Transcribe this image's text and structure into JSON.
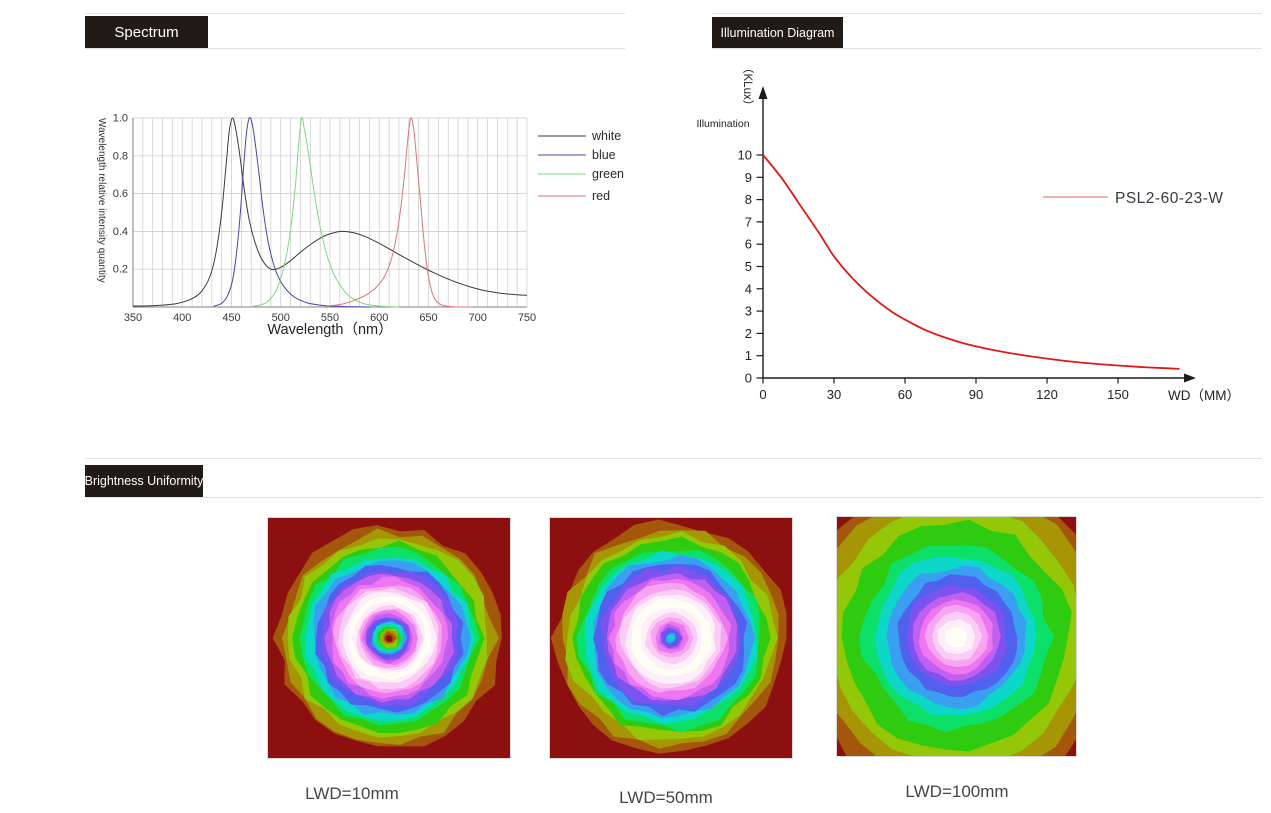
{
  "sections": {
    "spectrum": {
      "title": "Spectrum"
    },
    "illumination": {
      "title": "Illumination Diagram"
    },
    "uniformity": {
      "title": "Brightness Uniformity"
    }
  },
  "theme": {
    "tag_bg": "#201b17",
    "tag_text": "#ffffff",
    "divider": "#e0e0e0",
    "grid": "#c9c9c9",
    "axis_dark": "#808080",
    "illum_curve_red": "#df1a16",
    "illum_legend_line": "#e8807e"
  },
  "chart_data": [
    {
      "id": "spectrum",
      "type": "line",
      "title": "",
      "xlabel": "Wavelength（nm）",
      "ylabel": "Wavelength relative intensity quantity",
      "xlim": [
        350,
        750
      ],
      "ylim": [
        0,
        1.0
      ],
      "xticks": [
        350,
        400,
        450,
        500,
        550,
        600,
        650,
        700,
        750
      ],
      "yticks": [
        0.2,
        0.4,
        0.6,
        0.8,
        1.0
      ],
      "grid": "minor vertical every 10 nm, horizontal every 0.2",
      "legend_position": "right",
      "series": [
        {
          "name": "white",
          "color": "#3a3a3a",
          "peak_nm": 451,
          "points": [
            [
              350,
              0.005
            ],
            [
              365,
              0.006
            ],
            [
              380,
              0.01
            ],
            [
              392,
              0.016
            ],
            [
              402,
              0.028
            ],
            [
              412,
              0.05
            ],
            [
              420,
              0.085
            ],
            [
              428,
              0.16
            ],
            [
              434,
              0.28
            ],
            [
              440,
              0.5
            ],
            [
              445,
              0.78
            ],
            [
              448,
              0.94
            ],
            [
              451,
              1.0
            ],
            [
              454,
              0.95
            ],
            [
              458,
              0.82
            ],
            [
              463,
              0.62
            ],
            [
              468,
              0.46
            ],
            [
              474,
              0.34
            ],
            [
              480,
              0.26
            ],
            [
              486,
              0.215
            ],
            [
              492,
              0.198
            ],
            [
              500,
              0.21
            ],
            [
              510,
              0.245
            ],
            [
              520,
              0.29
            ],
            [
              530,
              0.33
            ],
            [
              542,
              0.37
            ],
            [
              552,
              0.39
            ],
            [
              562,
              0.4
            ],
            [
              574,
              0.393
            ],
            [
              586,
              0.372
            ],
            [
              598,
              0.342
            ],
            [
              610,
              0.308
            ],
            [
              622,
              0.272
            ],
            [
              634,
              0.238
            ],
            [
              646,
              0.205
            ],
            [
              658,
              0.175
            ],
            [
              670,
              0.148
            ],
            [
              682,
              0.124
            ],
            [
              694,
              0.104
            ],
            [
              706,
              0.088
            ],
            [
              718,
              0.077
            ],
            [
              730,
              0.069
            ],
            [
              740,
              0.065
            ],
            [
              750,
              0.062
            ]
          ]
        },
        {
          "name": "blue",
          "color": "#4545a2",
          "peak_nm": 468,
          "points": [
            [
              432,
              0.004
            ],
            [
              440,
              0.02
            ],
            [
              446,
              0.06
            ],
            [
              451,
              0.14
            ],
            [
              455,
              0.28
            ],
            [
              459,
              0.5
            ],
            [
              462,
              0.72
            ],
            [
              465,
              0.91
            ],
            [
              468,
              1.0
            ],
            [
              471,
              0.97
            ],
            [
              474,
              0.87
            ],
            [
              478,
              0.7
            ],
            [
              482,
              0.52
            ],
            [
              487,
              0.35
            ],
            [
              492,
              0.24
            ],
            [
              497,
              0.165
            ],
            [
              503,
              0.11
            ],
            [
              510,
              0.068
            ],
            [
              518,
              0.04
            ],
            [
              527,
              0.022
            ],
            [
              537,
              0.012
            ],
            [
              548,
              0.006
            ],
            [
              560,
              0.003
            ],
            [
              575,
              0.001
            ],
            [
              590,
              0.0
            ]
          ]
        },
        {
          "name": "green",
          "color": "#7fd97f",
          "peak_nm": 521,
          "points": [
            [
              472,
              0.004
            ],
            [
              480,
              0.012
            ],
            [
              487,
              0.03
            ],
            [
              494,
              0.075
            ],
            [
              500,
              0.15
            ],
            [
              506,
              0.28
            ],
            [
              511,
              0.45
            ],
            [
              515,
              0.65
            ],
            [
              518,
              0.85
            ],
            [
              521,
              1.0
            ],
            [
              524,
              0.94
            ],
            [
              528,
              0.82
            ],
            [
              533,
              0.64
            ],
            [
              539,
              0.45
            ],
            [
              546,
              0.29
            ],
            [
              553,
              0.185
            ],
            [
              561,
              0.11
            ],
            [
              569,
              0.06
            ],
            [
              578,
              0.03
            ],
            [
              588,
              0.013
            ],
            [
              600,
              0.005
            ],
            [
              612,
              0.001
            ],
            [
              620,
              0.0
            ]
          ]
        },
        {
          "name": "red",
          "color": "#d97676",
          "peak_nm": 632,
          "points": [
            [
              545,
              0.004
            ],
            [
              556,
              0.01
            ],
            [
              566,
              0.02
            ],
            [
              576,
              0.038
            ],
            [
              586,
              0.062
            ],
            [
              596,
              0.1
            ],
            [
              604,
              0.15
            ],
            [
              611,
              0.23
            ],
            [
              617,
              0.36
            ],
            [
              622,
              0.53
            ],
            [
              626,
              0.72
            ],
            [
              629,
              0.89
            ],
            [
              632,
              1.0
            ],
            [
              635,
              0.94
            ],
            [
              638,
              0.78
            ],
            [
              642,
              0.55
            ],
            [
              646,
              0.32
            ],
            [
              650,
              0.16
            ],
            [
              654,
              0.07
            ],
            [
              659,
              0.025
            ],
            [
              665,
              0.008
            ],
            [
              672,
              0.002
            ],
            [
              680,
              0.0
            ],
            [
              695,
              0.0
            ]
          ]
        }
      ]
    },
    {
      "id": "illumination",
      "type": "line",
      "title": "",
      "ylabel_unit": "（KLux）",
      "ylabel": "Illumination",
      "xlabel": "WD（MM）",
      "xlim": [
        0,
        180
      ],
      "ylim": [
        0,
        10
      ],
      "xticks": [
        0,
        30,
        60,
        90,
        120,
        150
      ],
      "yticks": [
        0,
        1,
        2,
        3,
        4,
        5,
        6,
        7,
        8,
        9,
        10
      ],
      "grid": "off",
      "legend_position": "right",
      "series": [
        {
          "name": "PSL2-60-23-W",
          "color": "#df1a16",
          "points": [
            [
              0,
              10
            ],
            [
              8,
              8.95
            ],
            [
              16,
              7.7
            ],
            [
              24,
              6.45
            ],
            [
              30,
              5.45
            ],
            [
              38,
              4.45
            ],
            [
              46,
              3.65
            ],
            [
              54,
              3.0
            ],
            [
              60,
              2.62
            ],
            [
              68,
              2.18
            ],
            [
              76,
              1.85
            ],
            [
              84,
              1.58
            ],
            [
              90,
              1.42
            ],
            [
              100,
              1.2
            ],
            [
              110,
              1.02
            ],
            [
              120,
              0.87
            ],
            [
              130,
              0.74
            ],
            [
              140,
              0.64
            ],
            [
              150,
              0.56
            ],
            [
              160,
              0.49
            ],
            [
              170,
              0.44
            ],
            [
              176,
              0.41
            ]
          ]
        }
      ]
    },
    {
      "id": "uniformity",
      "type": "heatmap",
      "description": "contour maps of brightness uniformity at three working distances",
      "palette": [
        "#8d1010",
        "#a4570b",
        "#a69504",
        "#93c707",
        "#2fcb11",
        "#0de069",
        "#0dd7c9",
        "#3b9ff1",
        "#5061ee",
        "#7e52ee",
        "#c160f0",
        "#ee76f0",
        "#f7a5f3",
        "#fbcdf5",
        "#fdeef9",
        "#fffdf4"
      ],
      "items": [
        {
          "label": "LWD=10mm",
          "pattern": "donut",
          "bg": 0,
          "seed": 11,
          "rings": [
            [
              0.93,
              1
            ],
            [
              0.88,
              2
            ],
            [
              0.83,
              3
            ],
            [
              0.78,
              4
            ],
            [
              0.73,
              5
            ],
            [
              0.69,
              6
            ],
            [
              0.65,
              7
            ],
            [
              0.61,
              8
            ],
            [
              0.57,
              9
            ],
            [
              0.53,
              10
            ],
            [
              0.49,
              11
            ],
            [
              0.45,
              12
            ],
            [
              0.415,
              13
            ],
            [
              0.385,
              14
            ],
            [
              0.35,
              15
            ],
            [
              0.3,
              14
            ],
            [
              0.275,
              13
            ],
            [
              0.25,
              12
            ],
            [
              0.227,
              11
            ],
            [
              0.205,
              10
            ],
            [
              0.185,
              9
            ],
            [
              0.167,
              8
            ],
            [
              0.15,
              7
            ],
            [
              0.133,
              6
            ],
            [
              0.117,
              5
            ],
            [
              0.101,
              4
            ],
            [
              0.085,
              3
            ],
            [
              0.069,
              2
            ],
            [
              0.053,
              1
            ],
            [
              0.036,
              0
            ]
          ]
        },
        {
          "label": "LWD=50mm",
          "pattern": "donut-small-core",
          "bg": 0,
          "seed": 22,
          "rings": [
            [
              0.96,
              1
            ],
            [
              0.91,
              2
            ],
            [
              0.86,
              3
            ],
            [
              0.81,
              4
            ],
            [
              0.755,
              5
            ],
            [
              0.71,
              6
            ],
            [
              0.67,
              7
            ],
            [
              0.63,
              8
            ],
            [
              0.585,
              9
            ],
            [
              0.54,
              10
            ],
            [
              0.497,
              11
            ],
            [
              0.455,
              12
            ],
            [
              0.413,
              13
            ],
            [
              0.373,
              14
            ],
            [
              0.335,
              15
            ],
            [
              0.26,
              14
            ],
            [
              0.215,
              13
            ],
            [
              0.175,
              12
            ],
            [
              0.14,
              11
            ],
            [
              0.112,
              10
            ],
            [
              0.088,
              9
            ],
            [
              0.066,
              8
            ],
            [
              0.042,
              7
            ],
            [
              0.022,
              6
            ]
          ]
        },
        {
          "label": "LWD=100mm",
          "pattern": "diffuse",
          "bg": 0,
          "seed": 33,
          "rings": [
            [
              1.33,
              1
            ],
            [
              1.22,
              2
            ],
            [
              1.08,
              3
            ],
            [
              0.95,
              4
            ],
            [
              0.78,
              5
            ],
            [
              0.68,
              6
            ],
            [
              0.585,
              7
            ],
            [
              0.5,
              8
            ],
            [
              0.43,
              9
            ],
            [
              0.365,
              10
            ],
            [
              0.31,
              11
            ],
            [
              0.258,
              12
            ],
            [
              0.206,
              13
            ],
            [
              0.155,
              14
            ],
            [
              0.095,
              15
            ]
          ]
        }
      ]
    }
  ]
}
